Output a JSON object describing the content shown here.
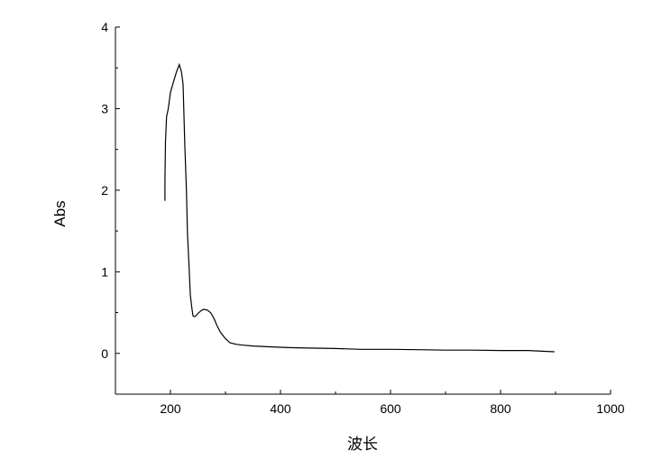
{
  "chart_data": {
    "type": "line",
    "title": "",
    "xlabel": "波长",
    "ylabel": "Abs",
    "xlim": [
      100,
      1000
    ],
    "ylim": [
      -0.5,
      4
    ],
    "xticks": [
      200,
      400,
      600,
      800,
      1000
    ],
    "yticks": [
      0,
      1,
      2,
      3,
      4
    ],
    "grid": false,
    "line_color": "#000000",
    "series": [
      {
        "x": [
          190,
          190,
          191,
          193,
          196,
          200,
          206,
          211,
          216,
          220,
          223,
          226,
          229,
          231,
          234,
          236,
          239,
          241,
          244,
          246,
          250,
          255,
          260,
          267,
          273,
          279,
          284,
          290,
          293,
          300,
          308,
          320,
          333,
          350,
          380,
          415,
          450,
          500,
          546,
          600,
          650,
          700,
          750,
          800,
          850,
          898
        ],
        "y": [
          1.87,
          2.12,
          2.6,
          2.9,
          3.0,
          3.2,
          3.34,
          3.45,
          3.54,
          3.45,
          3.3,
          2.56,
          2.0,
          1.46,
          1.05,
          0.72,
          0.55,
          0.46,
          0.45,
          0.46,
          0.49,
          0.52,
          0.54,
          0.53,
          0.5,
          0.43,
          0.35,
          0.27,
          0.24,
          0.18,
          0.13,
          0.11,
          0.1,
          0.09,
          0.08,
          0.07,
          0.065,
          0.06,
          0.05,
          0.05,
          0.045,
          0.04,
          0.04,
          0.035,
          0.035,
          0.02
        ]
      }
    ]
  }
}
